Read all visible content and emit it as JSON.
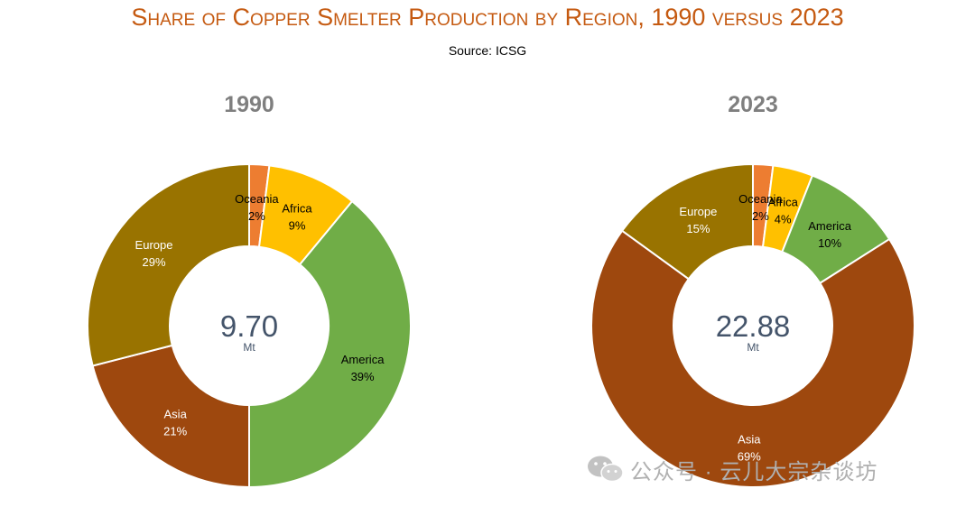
{
  "header": {
    "title": "Share of Copper Smelter Production by Region, 1990 versus 2023",
    "source": "Source: ICSG"
  },
  "colors": {
    "Oceania": "#ed7d31",
    "Africa": "#ffc000",
    "America": "#70ad47",
    "Asia": "#9e480e",
    "Europe": "#997300"
  },
  "watermark": {
    "text": "公众号 · 云儿大宗杂谈坊",
    "icon": "wechat-icon"
  },
  "chart_data": [
    {
      "type": "pie",
      "title": "1990",
      "center_value": "9.70",
      "center_unit": "Mt",
      "slices": [
        {
          "label": "Oceania",
          "value": 2,
          "display": "2%"
        },
        {
          "label": "Africa",
          "value": 9,
          "display": "9%"
        },
        {
          "label": "America",
          "value": 39,
          "display": "39%"
        },
        {
          "label": "Asia",
          "value": 21,
          "display": "21%"
        },
        {
          "label": "Europe",
          "value": 29,
          "display": "29%"
        }
      ]
    },
    {
      "type": "pie",
      "title": "2023",
      "center_value": "22.88",
      "center_unit": "Mt",
      "slices": [
        {
          "label": "Oceania",
          "value": 2,
          "display": "2%"
        },
        {
          "label": "Africa",
          "value": 4,
          "display": "4%"
        },
        {
          "label": "America",
          "value": 10,
          "display": "10%"
        },
        {
          "label": "Asia",
          "value": 69,
          "display": "69%"
        },
        {
          "label": "Europe",
          "value": 15,
          "display": "15%"
        }
      ]
    }
  ]
}
